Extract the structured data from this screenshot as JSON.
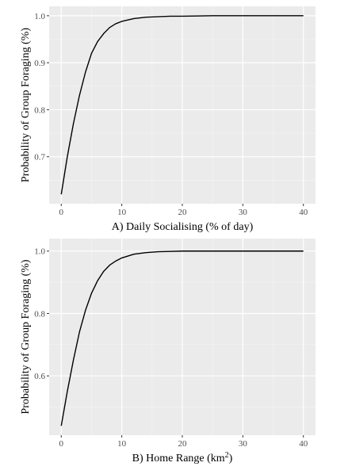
{
  "chart_data": [
    {
      "type": "line",
      "xlabel": "A) Daily Socialising (% of day)",
      "ylabel": "Probability of Group Foraging (%)",
      "xlim": [
        -2,
        42
      ],
      "ylim": [
        0.6,
        1.02
      ],
      "x_ticks": [
        0,
        10,
        20,
        30,
        40
      ],
      "y_ticks": [
        0.7,
        0.8,
        0.9,
        1.0
      ],
      "y_tick_labels": [
        "0.7",
        "0.8",
        "0.9",
        "1.0"
      ],
      "grid": true,
      "series": [
        {
          "x": [
            0,
            1,
            2,
            3,
            4,
            5,
            6,
            7,
            8,
            9,
            10,
            12,
            14,
            16,
            18,
            20,
            25,
            30,
            35,
            40
          ],
          "y": [
            0.62,
            0.7,
            0.77,
            0.83,
            0.88,
            0.92,
            0.945,
            0.962,
            0.975,
            0.983,
            0.988,
            0.994,
            0.997,
            0.998,
            0.999,
            0.999,
            1.0,
            1.0,
            1.0,
            1.0
          ]
        }
      ]
    },
    {
      "type": "line",
      "xlabel": "B) Home Range (km",
      "xlabel_sup": "2",
      "xlabel_end": ")",
      "ylabel": "Probability of Group Foraging (%)",
      "xlim": [
        -2,
        42
      ],
      "ylim": [
        0.41,
        1.04
      ],
      "x_ticks": [
        0,
        10,
        20,
        30,
        40
      ],
      "y_ticks": [
        0.6,
        0.8,
        1.0
      ],
      "y_tick_labels": [
        "0.6",
        "0.8",
        "1.0"
      ],
      "grid": true,
      "series": [
        {
          "x": [
            0,
            1,
            2,
            3,
            4,
            5,
            6,
            7,
            8,
            9,
            10,
            12,
            14,
            16,
            18,
            20,
            25,
            30,
            35,
            40
          ],
          "y": [
            0.44,
            0.55,
            0.65,
            0.74,
            0.81,
            0.865,
            0.905,
            0.935,
            0.955,
            0.968,
            0.978,
            0.99,
            0.995,
            0.998,
            0.999,
            1.0,
            1.0,
            1.0,
            1.0,
            1.0
          ]
        }
      ]
    }
  ]
}
